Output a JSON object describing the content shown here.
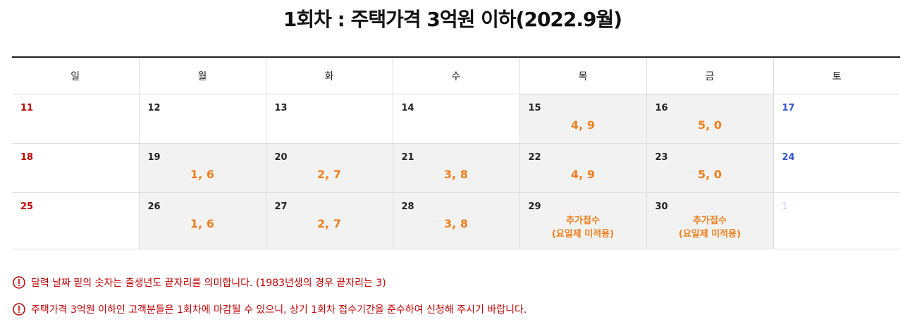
{
  "title": "1회차 : 주택가격 3억원 이하(2022.9월)",
  "table": {
    "header": [
      "일",
      "월",
      "화",
      "수",
      "목",
      "금",
      "토"
    ],
    "rows": [
      [
        {
          "day": 11
        },
        {
          "day": 12
        },
        {
          "day": 13
        },
        {
          "day": 14
        },
        {
          "day": 15,
          "note": [
            "4, 9"
          ]
        },
        {
          "day": 16,
          "note": [
            "5, 0"
          ]
        },
        {
          "day": 17
        }
      ],
      [
        {
          "day": 18
        },
        {
          "day": 19,
          "note": [
            "1, 6"
          ]
        },
        {
          "day": 20,
          "note": [
            "2, 7"
          ]
        },
        {
          "day": 21,
          "note": [
            "3, 8"
          ]
        },
        {
          "day": 22,
          "note": [
            "4, 9"
          ]
        },
        {
          "day": 23,
          "note": [
            "5, 0"
          ]
        },
        {
          "day": 24
        }
      ],
      [
        {
          "day": 25
        },
        {
          "day": 26,
          "note": [
            "1, 6"
          ]
        },
        {
          "day": 27,
          "note": [
            "2, 7"
          ]
        },
        {
          "day": 28,
          "note": [
            "3, 8"
          ]
        },
        {
          "day": 29,
          "note": [
            "추가접수",
            "(요일제 미적용)"
          ]
        },
        {
          "day": 30,
          "note": [
            "추가접수",
            "(요일제 미적용)"
          ]
        },
        {
          "day": 1
        }
      ]
    ]
  },
  "notices": [
    "달력 날짜 밑의 숫자는 출생년도 끝자리를 의미합니다. (1983년생의 경우 끝자리는 3)",
    "주택가격 3억원 이하인 고객분들은 1회차에 마감될 수 있으니, 상기 1회차 접수기간을 준수하여 신청해 주시기 바랍니다."
  ]
}
